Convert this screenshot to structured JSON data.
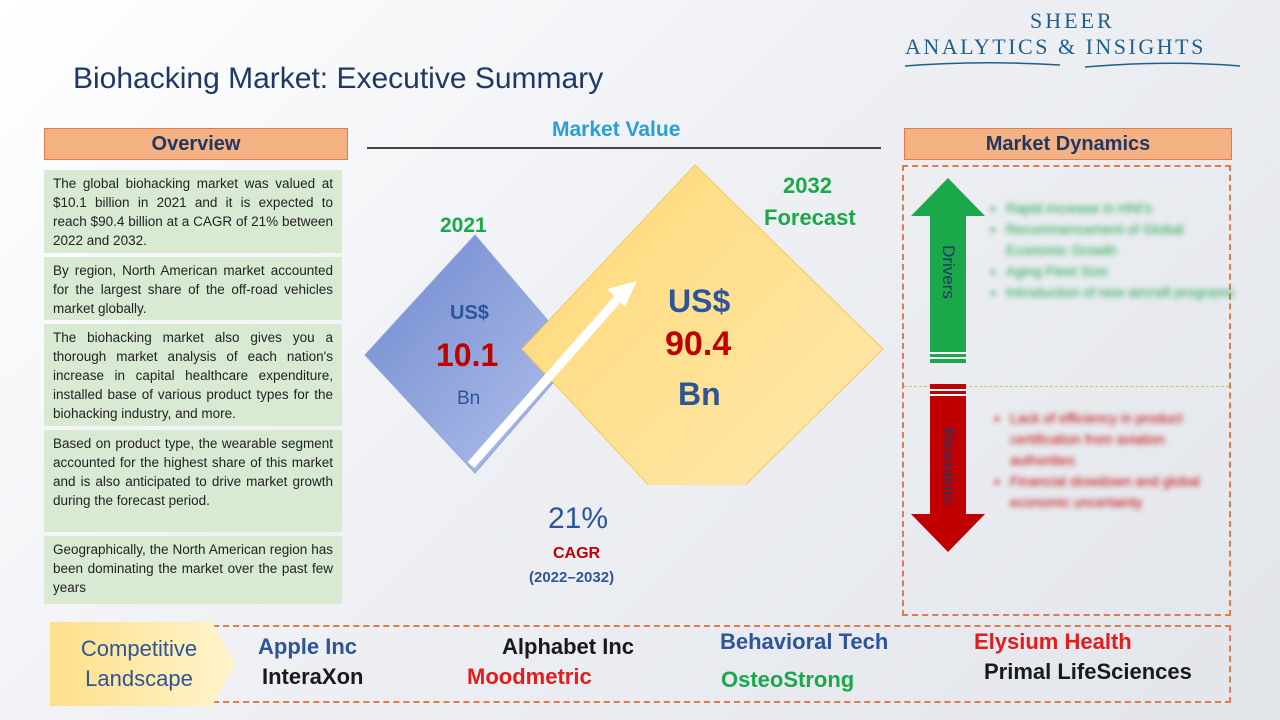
{
  "logo": {
    "line1": "SHEER",
    "line2": "ANALYTICS & INSIGHTS"
  },
  "title": "Biohacking Market: Executive Summary",
  "overview": {
    "header": "Overview",
    "items": [
      "The global biohacking market was valued at $10.1 billion in 2021 and it is expected to reach $90.4 billion at a CAGR of 21% between 2022 and 2032.",
      "By region, North American market accounted for the largest share of the off-road vehicles market globally.",
      "The biohacking market also gives you a thorough market analysis of each nation's increase in capital healthcare expenditure, installed base of various product types for the biohacking industry, and more.",
      "Based on product type, the wearable segment accounted for the highest share of this market and is also anticipated to drive market growth during the forecast period.",
      "Geographically, the North American region has been dominating the market over the past few years"
    ]
  },
  "market_value": {
    "title": "Market Value",
    "year_2021": "2021",
    "value_2021": {
      "currency": "US$",
      "amount": "10.1",
      "unit": "Bn"
    },
    "forecast_year": "2032",
    "forecast_label": "Forecast",
    "value_2032": {
      "currency": "US$",
      "amount": "90.4",
      "unit": "Bn"
    },
    "cagr_value": "21%",
    "cagr_label": "CAGR",
    "cagr_period": "(2022–2032)"
  },
  "market_dynamics": {
    "header": "Market Dynamics",
    "drivers_label": "Drivers",
    "restraints_label": "Restraints",
    "drivers": [
      "Rapid increase in HNI's",
      "Recommencement of Global Economic Growth",
      "Aging Fleet Size",
      "Introduction of new aircraft programs"
    ],
    "restraints": [
      "Lack of efficiency in product certification from aviation authorities",
      "Financial slowdown and global economic uncertainty"
    ]
  },
  "competitive_landscape": {
    "label_line1": "Competitive",
    "label_line2": "Landscape",
    "companies": [
      {
        "name": "Apple Inc",
        "color": "#2e5597"
      },
      {
        "name": "InteraXon",
        "color": "#1a1a1a"
      },
      {
        "name": "Alphabet Inc",
        "color": "#1a1a1a"
      },
      {
        "name": "Moodmetric",
        "color": "#e31c1c"
      },
      {
        "name": "Behavioral Tech",
        "color": "#2e5597"
      },
      {
        "name": "OsteoStrong",
        "color": "#1aa84a"
      },
      {
        "name": "Elysium Health",
        "color": "#e31c1c"
      },
      {
        "name": "Primal LifeSciences",
        "color": "#1a1a1a"
      }
    ]
  },
  "colors": {
    "accent_blue": "#1f3864",
    "header_orange": "#f4b183",
    "overview_green": "#d9ead3",
    "driver_green": "#1aa84a",
    "restraint_red": "#c00000"
  }
}
